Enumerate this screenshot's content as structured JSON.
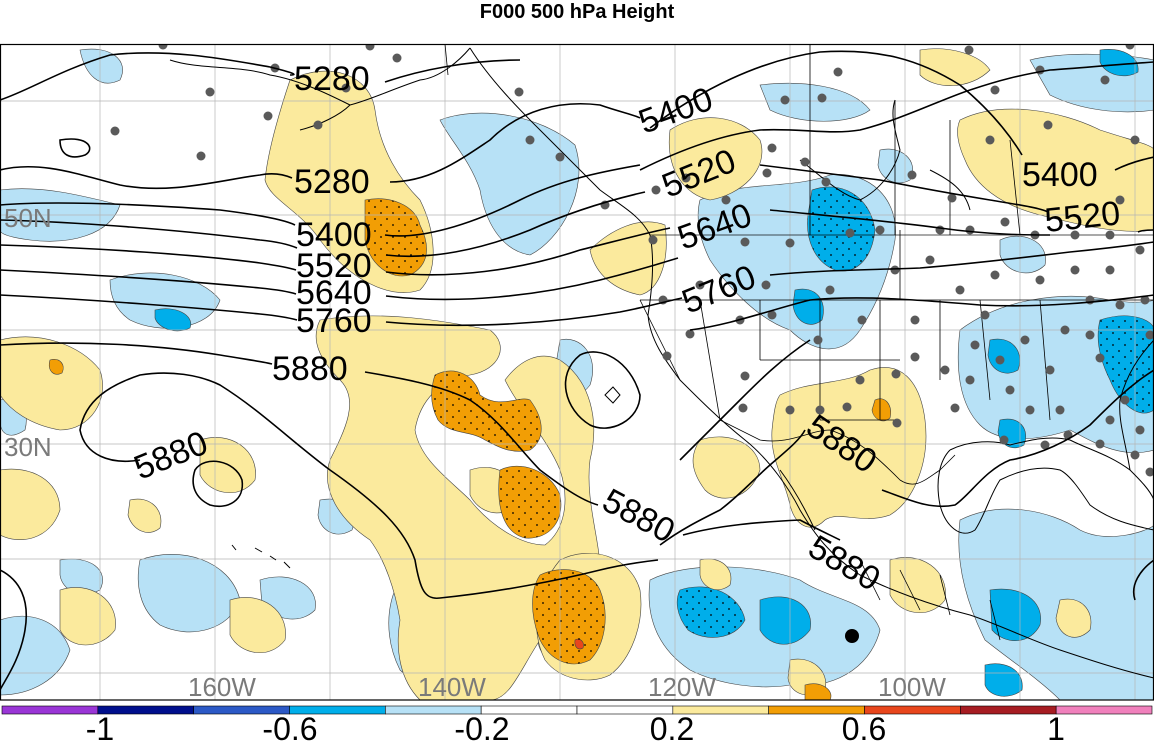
{
  "title": "F000 500 hPa Height",
  "map": {
    "lon_labels": [
      "160W",
      "140W",
      "120W",
      "100W"
    ],
    "lat_labels": [
      "50N",
      "30N"
    ],
    "contour_labels": [
      "5280",
      "5280",
      "5400",
      "5520",
      "5640",
      "5760",
      "5880",
      "5880",
      "5880",
      "5400",
      "5520",
      "5640",
      "5760",
      "5880",
      "5880",
      "5400",
      "5520"
    ]
  },
  "colorbar": {
    "colors": [
      "#9a36d6",
      "#000f8c",
      "#2c59c6",
      "#00aeea",
      "#b7e1f6",
      "#ffffff",
      "#ffffff",
      "#fbea9d",
      "#f29e05",
      "#e8461c",
      "#a61c22",
      "#f080bc"
    ],
    "labels": [
      "-1",
      "-0.6",
      "-0.2",
      "0.2",
      "0.6",
      "1"
    ]
  }
}
